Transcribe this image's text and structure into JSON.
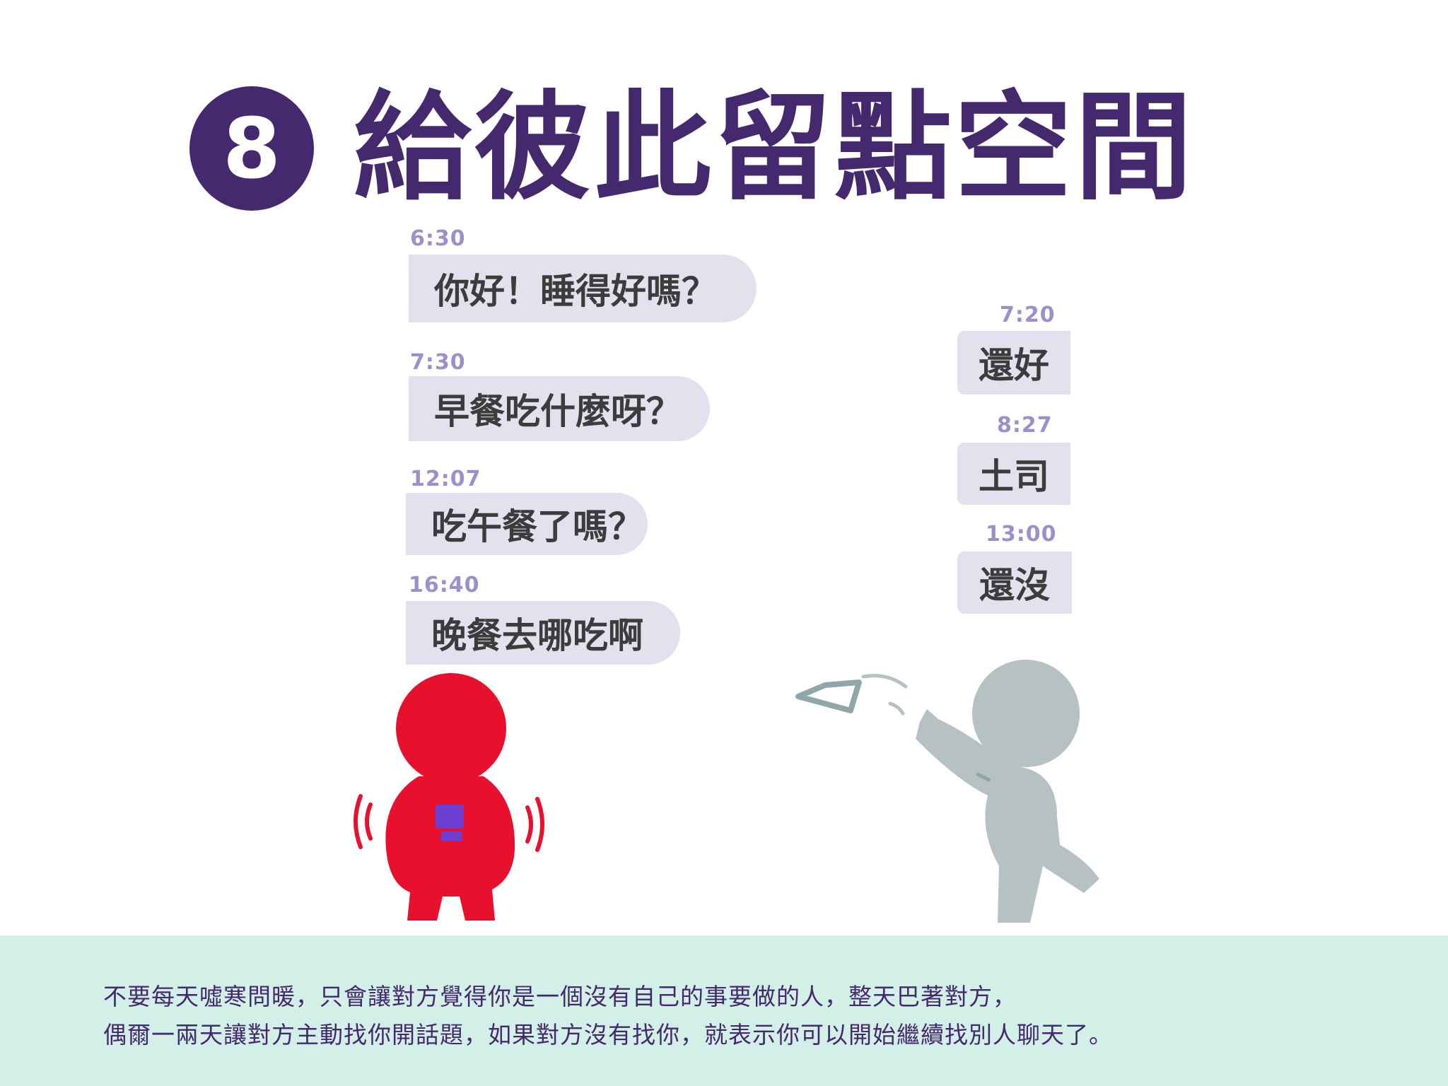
{
  "title": {
    "number": "8",
    "text": "給彼此留點空間"
  },
  "messages_left": [
    {
      "time": "6:30",
      "text": "你好！睡得好嗎？"
    },
    {
      "time": "7:30",
      "text": "早餐吃什麼呀？"
    },
    {
      "time": "12:07",
      "text": "吃午餐了嗎？"
    },
    {
      "time": "16:40",
      "text": "晚餐去哪吃啊"
    }
  ],
  "messages_right": [
    {
      "time": "7:20",
      "text": "還好"
    },
    {
      "time": "8:27",
      "text": "土司"
    },
    {
      "time": "13:00",
      "text": "還沒"
    }
  ],
  "caption": {
    "line1": "不要每天噓寒問暖，只會讓對方覺得你是一個沒有自己的事要做的人，整天巴著對方，",
    "line2": "偶爾一兩天讓對方主動找你開話題，如果對方沒有找你，就表示你可以開始繼續找別人聊天了。"
  },
  "colors": {
    "title": "#44296e",
    "bubble": "#e4e1ee",
    "timestamp": "#9d8fcc",
    "red_figure": "#e8102c",
    "grey_figure": "#b5c1c3",
    "phone": "#6a3fd1",
    "caption_band": "#d2efe8"
  }
}
